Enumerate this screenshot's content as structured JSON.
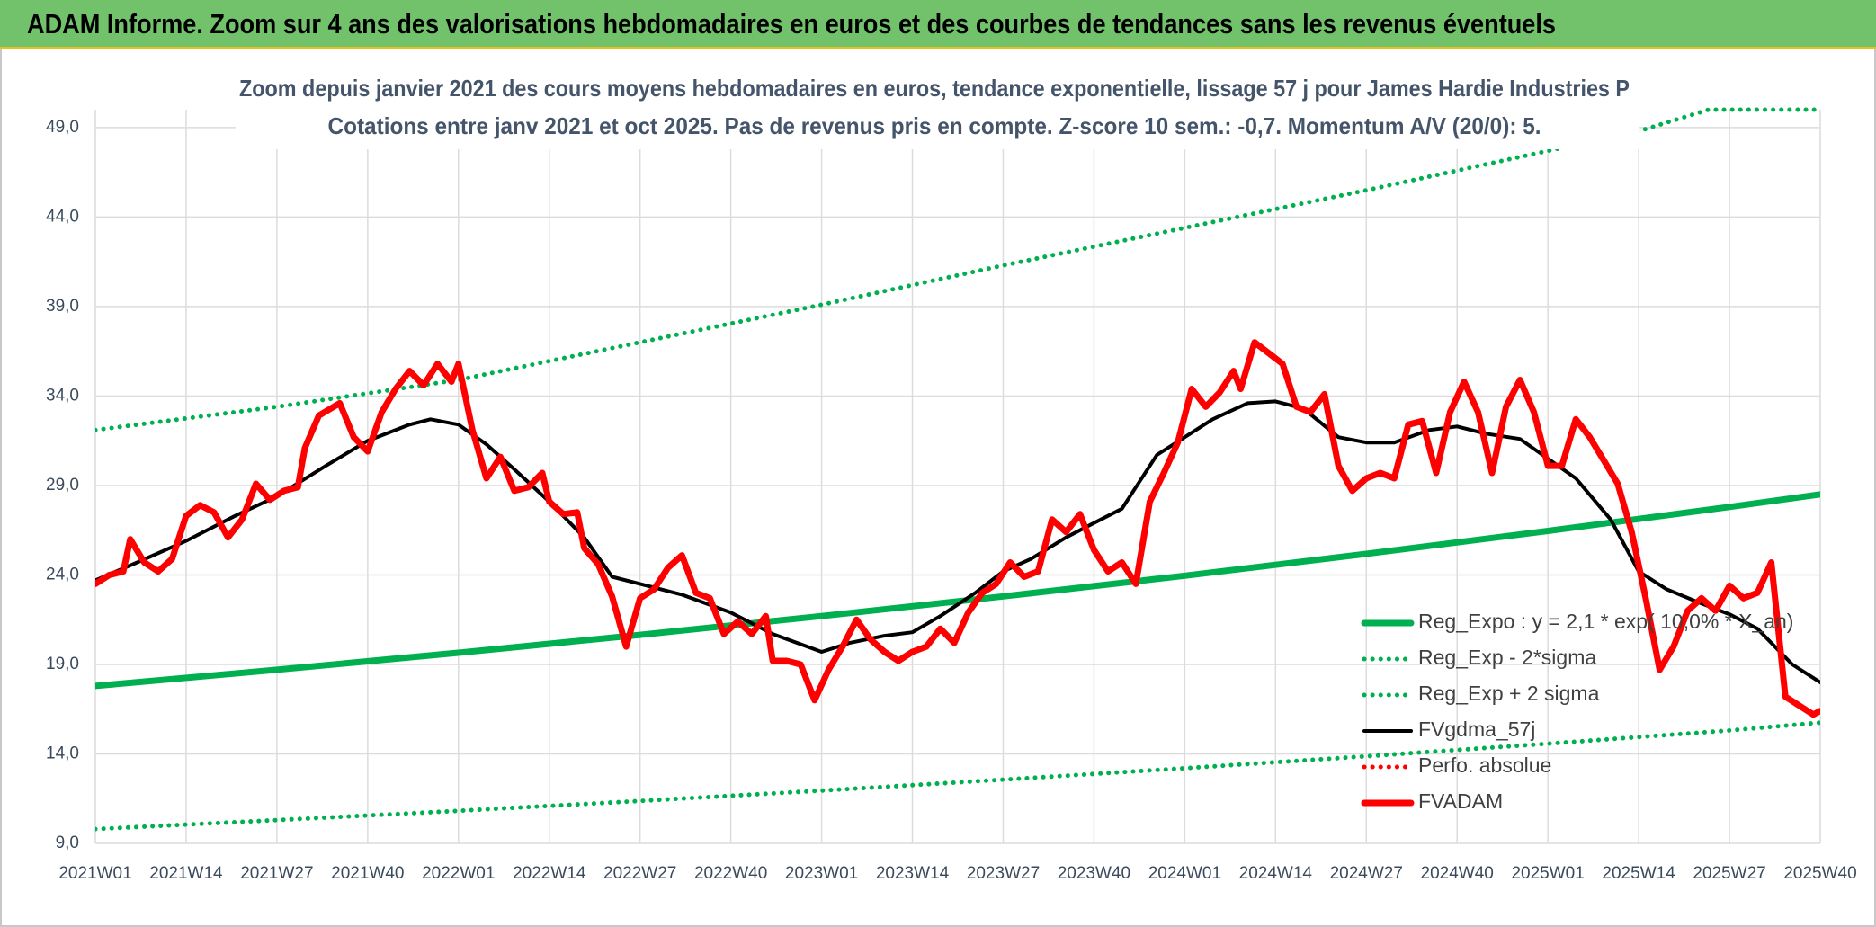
{
  "chart_data": {
    "type": "line",
    "title": "ADAM Informe. Zoom sur 4 ans des valorisations hebdomadaires en euros et des courbes de tendances sans les revenus éventuels",
    "subtitle": [
      "Zoom depuis janvier 2021 des cours moyens hebdomadaires en euros, tendance exponentielle, lissage 57 j pour James Hardie Industries P",
      "Cotations entre janv 2021 et oct 2025. Pas de revenus pris en compte. Z-score 10 sem.: -0,7. Momentum A/V (20/0): 5."
    ],
    "xlim": [
      0,
      247
    ],
    "xticks": [
      {
        "value": 0,
        "label": "2021W01"
      },
      {
        "value": 13,
        "label": "2021W14"
      },
      {
        "value": 26,
        "label": "2021W27"
      },
      {
        "value": 39,
        "label": "2021W40"
      },
      {
        "value": 52,
        "label": "2022W01"
      },
      {
        "value": 65,
        "label": "2022W14"
      },
      {
        "value": 78,
        "label": "2022W27"
      },
      {
        "value": 91,
        "label": "2022W40"
      },
      {
        "value": 104,
        "label": "2023W01"
      },
      {
        "value": 117,
        "label": "2023W14"
      },
      {
        "value": 130,
        "label": "2023W27"
      },
      {
        "value": 143,
        "label": "2023W40"
      },
      {
        "value": 156,
        "label": "2024W01"
      },
      {
        "value": 169,
        "label": "2024W14"
      },
      {
        "value": 182,
        "label": "2024W27"
      },
      {
        "value": 195,
        "label": "2024W40"
      },
      {
        "value": 208,
        "label": "2025W01"
      },
      {
        "value": 221,
        "label": "2025W14"
      },
      {
        "value": 234,
        "label": "2025W27"
      },
      {
        "value": 247,
        "label": "2025W40"
      }
    ],
    "ylim": [
      9,
      50
    ],
    "yticks": [
      {
        "value": 9,
        "label": "9,0"
      },
      {
        "value": 14,
        "label": "14,0"
      },
      {
        "value": 19,
        "label": "19,0"
      },
      {
        "value": 24,
        "label": "24,0"
      },
      {
        "value": 29,
        "label": "29,0"
      },
      {
        "value": 34,
        "label": "34,0"
      },
      {
        "value": 39,
        "label": "39,0"
      },
      {
        "value": 44,
        "label": "44,0"
      },
      {
        "value": 49,
        "label": "49,0"
      }
    ],
    "grid": true,
    "legend": "right",
    "series": [
      {
        "name": "Reg_Expo : y = 2,1 * exp( 10,0% * X_an)",
        "color": "#00b050",
        "style": "thick",
        "x": [
          0,
          26,
          52,
          78,
          104,
          130,
          156,
          182,
          208,
          234,
          247
        ],
        "values": [
          17.8,
          18.7,
          19.65,
          20.65,
          21.7,
          22.8,
          23.96,
          25.18,
          26.46,
          27.8,
          28.5
        ]
      },
      {
        "name": "Reg_Exp - 2*sigma",
        "color": "#00b050",
        "style": "dotted",
        "x": [
          0,
          26,
          52,
          78,
          104,
          130,
          156,
          182,
          208,
          234,
          247
        ],
        "values": [
          9.8,
          10.3,
          10.82,
          11.37,
          11.95,
          12.56,
          13.2,
          13.87,
          14.57,
          15.31,
          15.75
        ]
      },
      {
        "name": "Reg_Exp + 2 sigma",
        "color": "#00b050",
        "style": "dotted",
        "x": [
          0,
          26,
          52,
          78,
          104,
          130,
          156,
          182,
          208,
          221,
          231,
          247
        ],
        "values": [
          32.1,
          33.4,
          34.9,
          37.0,
          39.1,
          41.3,
          43.4,
          45.5,
          47.7,
          48.8,
          50,
          50
        ]
      },
      {
        "name": "FVgdma_57j",
        "color": "#000000",
        "style": "thin",
        "x": [
          0,
          6,
          13,
          20,
          26,
          33,
          39,
          45,
          48,
          52,
          56,
          60,
          65,
          70,
          74,
          78,
          84,
          91,
          97,
          104,
          108,
          113,
          117,
          121,
          126,
          130,
          134,
          139,
          143,
          147,
          152,
          156,
          160,
          165,
          169,
          173,
          178,
          182,
          186,
          191,
          195,
          199,
          204,
          208,
          212,
          217,
          221,
          225,
          230,
          234,
          238,
          243,
          247
        ],
        "values": [
          23.7,
          24.7,
          25.9,
          27.3,
          28.4,
          30.1,
          31.5,
          32.4,
          32.7,
          32.4,
          31.3,
          29.9,
          28.1,
          26.1,
          23.9,
          23.5,
          22.9,
          21.9,
          20.7,
          19.7,
          20.2,
          20.6,
          20.8,
          21.7,
          23.0,
          24.2,
          24.9,
          26.1,
          26.9,
          27.7,
          30.7,
          31.7,
          32.7,
          33.6,
          33.7,
          33.3,
          31.7,
          31.4,
          31.4,
          32.1,
          32.3,
          31.9,
          31.6,
          30.5,
          29.4,
          27.1,
          24.2,
          23.2,
          22.4,
          21.8,
          21.0,
          19.0,
          18.0
        ]
      },
      {
        "name": "Perfo. absolue",
        "color": "#ff0000",
        "style": "dotted",
        "x": [],
        "values": []
      },
      {
        "name": "FVADAM",
        "color": "#ff0000",
        "style": "thick",
        "x": [
          0,
          2,
          4,
          5,
          7,
          9,
          11,
          13,
          15,
          17,
          19,
          21,
          23,
          25,
          27,
          29,
          30,
          32,
          35,
          37,
          39,
          41,
          43,
          45,
          47,
          49,
          51,
          52,
          54,
          56,
          58,
          60,
          62,
          64,
          65,
          67,
          69,
          70,
          72,
          74,
          76,
          78,
          80,
          82,
          84,
          86,
          88,
          90,
          92,
          94,
          96,
          97,
          99,
          101,
          103,
          105,
          107,
          109,
          111,
          113,
          115,
          117,
          119,
          121,
          123,
          125,
          127,
          129,
          131,
          133,
          135,
          137,
          139,
          141,
          143,
          145,
          147,
          149,
          151,
          153,
          155,
          157,
          159,
          161,
          163,
          164,
          166,
          168,
          170,
          172,
          174,
          176,
          178,
          180,
          182,
          184,
          186,
          188,
          190,
          192,
          194,
          196,
          198,
          200,
          202,
          204,
          206,
          208,
          210,
          212,
          214,
          216,
          218,
          220,
          222,
          224,
          226,
          228,
          230,
          232,
          234,
          236,
          238,
          240,
          242,
          244,
          246,
          247
        ],
        "values": [
          23.5,
          24.0,
          24.2,
          26.0,
          24.7,
          24.2,
          24.9,
          27.3,
          27.9,
          27.5,
          26.1,
          27.1,
          29.1,
          28.2,
          28.7,
          28.9,
          31.1,
          32.9,
          33.6,
          31.7,
          30.9,
          33.1,
          34.4,
          35.4,
          34.6,
          35.8,
          34.8,
          35.8,
          32.1,
          29.4,
          30.6,
          28.7,
          28.9,
          29.7,
          28.1,
          27.4,
          27.5,
          25.5,
          24.6,
          22.8,
          20.0,
          22.7,
          23.2,
          24.4,
          25.1,
          23.0,
          22.7,
          20.7,
          21.4,
          20.7,
          21.7,
          19.2,
          19.2,
          19.0,
          17.0,
          18.7,
          20.0,
          21.5,
          20.4,
          19.7,
          19.2,
          19.7,
          20.0,
          21.0,
          20.2,
          21.9,
          23.0,
          23.5,
          24.7,
          23.9,
          24.2,
          27.1,
          26.4,
          27.4,
          25.4,
          24.2,
          24.7,
          23.5,
          28.1,
          29.7,
          31.4,
          34.4,
          33.4,
          34.2,
          35.4,
          34.4,
          37.0,
          36.4,
          35.8,
          33.4,
          33.1,
          34.1,
          30.1,
          28.7,
          29.4,
          29.7,
          29.4,
          32.4,
          32.6,
          29.7,
          33.1,
          34.8,
          33.1,
          29.7,
          33.4,
          34.9,
          33.1,
          30.1,
          30.1,
          32.7,
          31.7,
          30.4,
          29.1,
          26.4,
          22.7,
          18.7,
          20.0,
          22.0,
          22.7,
          22.0,
          23.4,
          22.7,
          23.0,
          24.7,
          17.2,
          16.7,
          16.2,
          16.4
        ]
      }
    ]
  }
}
